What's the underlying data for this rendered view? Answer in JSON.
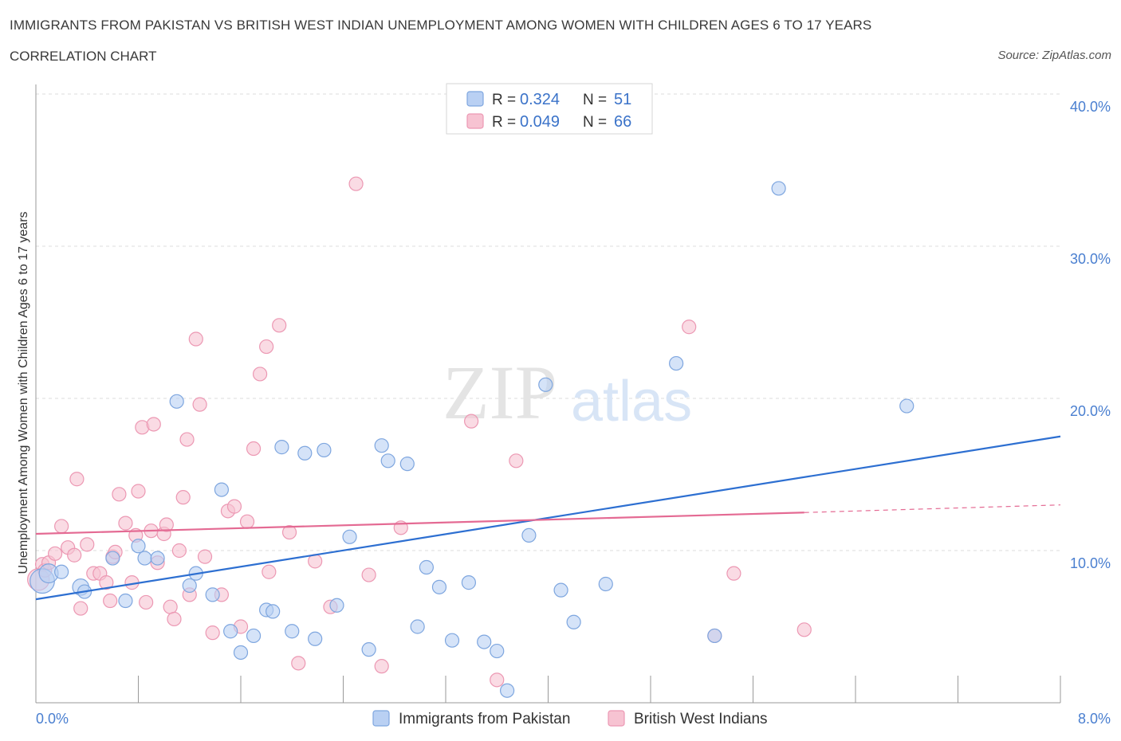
{
  "title": "IMMIGRANTS FROM PAKISTAN VS BRITISH WEST INDIAN UNEMPLOYMENT AMONG WOMEN WITH CHILDREN AGES 6 TO 17 YEARS",
  "subtitle": "CORRELATION CHART",
  "source": "Source: ZipAtlas.com",
  "watermark": {
    "zip": "ZIP",
    "atlas": "atlas"
  },
  "colors": {
    "blue_fill": "#b9d0f3",
    "blue_stroke": "#7ea6df",
    "blue_line": "#2d6fd1",
    "pink_fill": "#f7c3d2",
    "pink_stroke": "#ec98b3",
    "pink_line": "#e46a93",
    "grid": "#dcdcdc",
    "tick_text": "#4a7fd0"
  },
  "legend": {
    "r_label": "R =",
    "n_label": "N =",
    "rows": [
      {
        "series": "blue",
        "r": "0.324",
        "n": "51"
      },
      {
        "series": "pink",
        "r": "0.049",
        "n": "66"
      }
    ]
  },
  "chart_data": {
    "type": "scatter",
    "title": "IMMIGRANTS FROM PAKISTAN VS BRITISH WEST INDIAN UNEMPLOYMENT AMONG WOMEN WITH CHILDREN AGES 6 TO 17 YEARS",
    "xlabel": "",
    "ylabel": "Unemployment Among Women with Children Ages 6 to 17 years",
    "xlim": [
      0,
      8
    ],
    "ylim": [
      0,
      40
    ],
    "x_tick_labels": [
      "0.0%",
      "8.0%"
    ],
    "y_tick_labels": [
      "10.0%",
      "20.0%",
      "30.0%",
      "40.0%"
    ],
    "y_ticks": [
      10,
      20,
      30,
      40
    ],
    "grid": true,
    "legend_position": "top-center",
    "series": [
      {
        "name": "Immigrants from Pakistan",
        "color": "blue",
        "trend": {
          "x": [
            0,
            8
          ],
          "y": [
            6.8,
            17.5
          ]
        },
        "points": [
          [
            0.05,
            8.0,
            1.8
          ],
          [
            0.1,
            8.5,
            1.4
          ],
          [
            0.2,
            8.6,
            1
          ],
          [
            0.35,
            7.6,
            1.2
          ],
          [
            0.38,
            7.3,
            1
          ],
          [
            0.6,
            9.5,
            1
          ],
          [
            0.7,
            6.7,
            1
          ],
          [
            0.8,
            10.3,
            1
          ],
          [
            0.85,
            9.5,
            1
          ],
          [
            0.95,
            9.5,
            1
          ],
          [
            1.1,
            19.8,
            1
          ],
          [
            1.2,
            7.7,
            1
          ],
          [
            1.25,
            8.5,
            1
          ],
          [
            1.38,
            7.1,
            1
          ],
          [
            1.45,
            14.0,
            1
          ],
          [
            1.52,
            4.7,
            1
          ],
          [
            1.6,
            3.3,
            1
          ],
          [
            1.7,
            4.4,
            1
          ],
          [
            1.8,
            6.1,
            1
          ],
          [
            1.85,
            6.0,
            1
          ],
          [
            1.92,
            16.8,
            1
          ],
          [
            2.0,
            4.7,
            1
          ],
          [
            2.1,
            16.4,
            1
          ],
          [
            2.18,
            4.2,
            1
          ],
          [
            2.25,
            16.6,
            1
          ],
          [
            2.35,
            6.4,
            1
          ],
          [
            2.45,
            10.9,
            1
          ],
          [
            2.6,
            3.5,
            1
          ],
          [
            2.7,
            16.9,
            1
          ],
          [
            2.75,
            15.9,
            1
          ],
          [
            2.9,
            15.7,
            1
          ],
          [
            2.98,
            5.0,
            1
          ],
          [
            3.05,
            8.9,
            1
          ],
          [
            3.15,
            7.6,
            1
          ],
          [
            3.25,
            4.1,
            1
          ],
          [
            3.38,
            7.9,
            1
          ],
          [
            3.5,
            4.0,
            1
          ],
          [
            3.6,
            3.4,
            1
          ],
          [
            3.68,
            0.8,
            1
          ],
          [
            3.85,
            11.0,
            1
          ],
          [
            3.98,
            20.9,
            1
          ],
          [
            4.1,
            7.4,
            1
          ],
          [
            4.2,
            5.3,
            1
          ],
          [
            4.45,
            7.8,
            1
          ],
          [
            5.0,
            22.3,
            1
          ],
          [
            5.3,
            4.4,
            1
          ],
          [
            5.8,
            33.8,
            1
          ],
          [
            6.8,
            19.5,
            1
          ]
        ]
      },
      {
        "name": "British West Indians",
        "color": "pink",
        "trend": {
          "x": [
            0,
            6
          ],
          "y": [
            11.1,
            12.5
          ]
        },
        "trend_dashed": {
          "x": [
            6,
            8
          ],
          "y": [
            12.5,
            13.0
          ]
        },
        "points": [
          [
            0.02,
            8.1,
            1.6
          ],
          [
            0.05,
            9.1,
            1
          ],
          [
            0.07,
            8.7,
            1
          ],
          [
            0.1,
            9.2,
            1
          ],
          [
            0.15,
            9.8,
            1
          ],
          [
            0.2,
            11.6,
            1
          ],
          [
            0.25,
            10.2,
            1
          ],
          [
            0.3,
            9.7,
            1
          ],
          [
            0.32,
            14.7,
            1
          ],
          [
            0.35,
            6.2,
            1
          ],
          [
            0.4,
            10.4,
            1
          ],
          [
            0.45,
            8.5,
            1
          ],
          [
            0.5,
            8.5,
            1
          ],
          [
            0.55,
            7.9,
            1
          ],
          [
            0.58,
            6.7,
            1
          ],
          [
            0.6,
            9.6,
            1
          ],
          [
            0.62,
            9.9,
            1
          ],
          [
            0.65,
            13.7,
            1
          ],
          [
            0.7,
            11.8,
            1
          ],
          [
            0.75,
            7.9,
            1
          ],
          [
            0.78,
            11.0,
            1
          ],
          [
            0.8,
            13.9,
            1
          ],
          [
            0.83,
            18.1,
            1
          ],
          [
            0.86,
            6.6,
            1
          ],
          [
            0.9,
            11.3,
            1
          ],
          [
            0.92,
            18.3,
            1
          ],
          [
            0.95,
            9.2,
            1
          ],
          [
            1.0,
            11.1,
            1
          ],
          [
            1.02,
            11.7,
            1
          ],
          [
            1.05,
            6.3,
            1
          ],
          [
            1.08,
            5.5,
            1
          ],
          [
            1.12,
            10.0,
            1
          ],
          [
            1.15,
            13.5,
            1
          ],
          [
            1.18,
            17.3,
            1
          ],
          [
            1.2,
            7.1,
            1
          ],
          [
            1.25,
            23.9,
            1
          ],
          [
            1.28,
            19.6,
            1
          ],
          [
            1.32,
            9.6,
            1
          ],
          [
            1.38,
            4.6,
            1
          ],
          [
            1.45,
            7.1,
            1
          ],
          [
            1.5,
            12.6,
            1
          ],
          [
            1.55,
            12.9,
            1
          ],
          [
            1.6,
            5.0,
            1
          ],
          [
            1.65,
            11.9,
            1
          ],
          [
            1.7,
            16.7,
            1
          ],
          [
            1.75,
            21.6,
            1
          ],
          [
            1.8,
            23.4,
            1
          ],
          [
            1.82,
            8.6,
            1
          ],
          [
            1.9,
            24.8,
            1
          ],
          [
            1.98,
            11.2,
            1
          ],
          [
            2.05,
            2.6,
            1
          ],
          [
            2.18,
            9.3,
            1
          ],
          [
            2.3,
            6.3,
            1
          ],
          [
            2.5,
            34.1,
            1
          ],
          [
            2.6,
            8.4,
            1
          ],
          [
            2.7,
            2.4,
            1
          ],
          [
            2.85,
            11.5,
            1
          ],
          [
            3.4,
            18.5,
            1
          ],
          [
            3.6,
            1.5,
            1
          ],
          [
            3.75,
            15.9,
            1
          ],
          [
            5.1,
            24.7,
            1
          ],
          [
            5.3,
            4.4,
            1
          ],
          [
            5.45,
            8.5,
            1
          ],
          [
            6.0,
            4.8,
            1
          ]
        ]
      }
    ]
  },
  "bottom_legend": [
    {
      "series": "blue",
      "label": "Immigrants from Pakistan"
    },
    {
      "series": "pink",
      "label": "British West Indians"
    }
  ]
}
